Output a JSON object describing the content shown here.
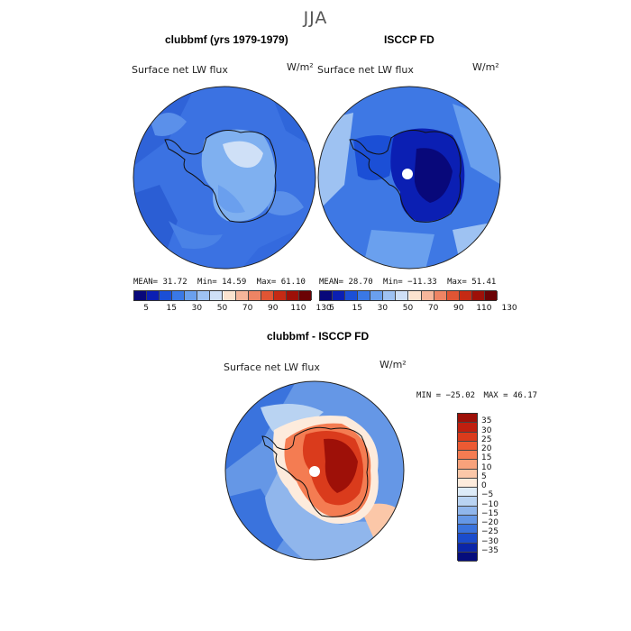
{
  "figure_title": "JJA",
  "panels": [
    {
      "title": "clubbmf (yrs 1979-1979)",
      "variable": "Surface net LW flux",
      "units": "W/m²",
      "stats": {
        "mean_label": "MEAN=",
        "mean": "31.72",
        "min_label": "Min=",
        "min": "14.59",
        "max_label": "Max=",
        "max": "61.10"
      }
    },
    {
      "title": "ISCCP FD",
      "variable": "Surface net LW flux",
      "units": "W/m²",
      "stats": {
        "mean_label": "MEAN=",
        "mean": "28.70",
        "min_label": "Min=",
        "min": "−11.33",
        "max_label": "Max=",
        "max": "51.41"
      }
    }
  ],
  "top_colorbar": {
    "colors": [
      "#08087a",
      "#0b1fb3",
      "#1b4fd6",
      "#3a78e6",
      "#6aa0ee",
      "#9ec2f2",
      "#cfe0f7",
      "#fbe3cf",
      "#f6b69b",
      "#ee8464",
      "#e05534",
      "#c52a14",
      "#9e1008",
      "#6b0205"
    ],
    "ticks": [
      "5",
      "15",
      "30",
      "50",
      "70",
      "90",
      "110",
      "130"
    ]
  },
  "diff_panel": {
    "title": "clubbmf - ISCCP FD",
    "variable": "Surface net LW flux",
    "units": "W/m²",
    "minmax": {
      "min_label": "MIN =",
      "min": "−25.02",
      "max_label": "MAX =",
      "max": "46.17"
    },
    "colorbar": {
      "colors": [
        "#9e1008",
        "#c01f0f",
        "#da3b1c",
        "#ec5a33",
        "#f47c52",
        "#f8a27b",
        "#fbc7a8",
        "#fdebdc",
        "#ddebf8",
        "#b9d3f2",
        "#90b6ec",
        "#6597e6",
        "#3a73dd",
        "#1b4ccc",
        "#0b26a8",
        "#050d7c"
      ],
      "labels": [
        "35",
        "30",
        "25",
        "20",
        "15",
        "10",
        "5",
        "0",
        "−5",
        "−10",
        "−15",
        "−20",
        "−25",
        "−30",
        "−35"
      ]
    }
  }
}
